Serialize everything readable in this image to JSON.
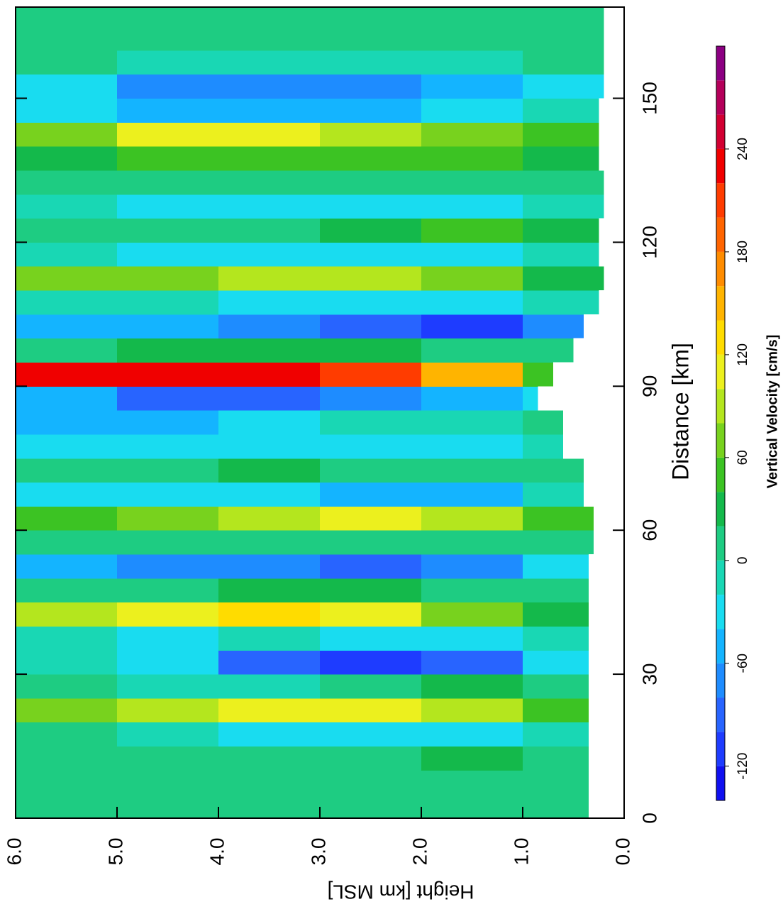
{
  "chart_data": {
    "type": "contour",
    "xlabel": "Distance [km]",
    "ylabel": "Height [km MSL]",
    "colorbar_label": "Vertical Velocity [cm/s]",
    "xlim": [
      0,
      169
    ],
    "ylim": [
      0,
      6
    ],
    "xticks": [
      0,
      30,
      60,
      90,
      120,
      150
    ],
    "yticks": [
      {
        "value": 0,
        "label": "0.0"
      },
      {
        "value": 1,
        "label": "1.0"
      },
      {
        "value": 2,
        "label": "2.0"
      },
      {
        "value": 3,
        "label": "3.0"
      },
      {
        "value": 4,
        "label": "4.0"
      },
      {
        "value": 5,
        "label": "5.0"
      },
      {
        "value": 6,
        "label": "6.0"
      }
    ],
    "x": [
      0,
      5,
      10,
      15,
      20,
      25,
      30,
      35,
      40,
      45,
      50,
      55,
      60,
      65,
      70,
      75,
      80,
      85,
      90,
      95,
      100,
      105,
      110,
      115,
      120,
      125,
      130,
      135,
      140,
      145,
      150,
      155,
      160,
      165
    ],
    "y": [
      0,
      1,
      2,
      3,
      4,
      5
    ],
    "z": [
      [
        10,
        10,
        10,
        10,
        10,
        10
      ],
      [
        10,
        10,
        10,
        10,
        10,
        10
      ],
      [
        10,
        20,
        10,
        10,
        10,
        10
      ],
      [
        -10,
        -30,
        -30,
        -30,
        -10,
        10
      ],
      [
        50,
        90,
        110,
        110,
        90,
        70
      ],
      [
        10,
        30,
        10,
        -10,
        -10,
        10
      ],
      [
        -30,
        -90,
        -110,
        -90,
        -40,
        -20
      ],
      [
        -10,
        -30,
        -30,
        -10,
        -30,
        -10
      ],
      [
        30,
        70,
        110,
        130,
        110,
        90
      ],
      [
        10,
        10,
        30,
        30,
        10,
        10
      ],
      [
        -30,
        -70,
        -90,
        -70,
        -70,
        -50
      ],
      [
        10,
        10,
        10,
        10,
        10,
        10
      ],
      [
        50,
        90,
        110,
        90,
        70,
        50
      ],
      [
        -10,
        -50,
        -50,
        -30,
        -30,
        -30
      ],
      [
        10,
        10,
        10,
        30,
        10,
        10
      ],
      [
        -10,
        -30,
        -30,
        -30,
        -30,
        -30
      ],
      [
        10,
        -10,
        -10,
        -30,
        -50,
        -50
      ],
      [
        -30,
        -50,
        -70,
        -90,
        -90,
        -50
      ],
      [
        50,
        150,
        210,
        230,
        230,
        230
      ],
      [
        10,
        10,
        30,
        30,
        30,
        10
      ],
      [
        -70,
        -110,
        -90,
        -70,
        -50,
        -50
      ],
      [
        -10,
        -30,
        -30,
        -30,
        -10,
        -10
      ],
      [
        30,
        70,
        90,
        90,
        70,
        70
      ],
      [
        -10,
        -30,
        -30,
        -30,
        -30,
        -10
      ],
      [
        30,
        50,
        30,
        10,
        10,
        10
      ],
      [
        -10,
        -30,
        -30,
        -30,
        -30,
        -10
      ],
      [
        10,
        10,
        10,
        10,
        10,
        10
      ],
      [
        30,
        50,
        50,
        50,
        50,
        30
      ],
      [
        50,
        70,
        90,
        100,
        100,
        70
      ],
      [
        -10,
        -30,
        -50,
        -50,
        -50,
        -30
      ],
      [
        -30,
        -50,
        -70,
        -70,
        -70,
        -30
      ],
      [
        10,
        -10,
        -10,
        -10,
        -10,
        10
      ],
      [
        10,
        10,
        10,
        10,
        10,
        10
      ],
      [
        10,
        10,
        10,
        10,
        10,
        10
      ]
    ],
    "terrain": [
      0.35,
      0.35,
      0.35,
      0.35,
      0.35,
      0.35,
      0.35,
      0.35,
      0.35,
      0.35,
      0.35,
      0.3,
      0.3,
      0.4,
      0.4,
      0.6,
      0.6,
      0.85,
      0.7,
      0.5,
      0.4,
      0.25,
      0.2,
      0.25,
      0.25,
      0.2,
      0.2,
      0.25,
      0.25,
      0.25,
      0.2,
      0.2,
      0.2,
      0.2
    ],
    "levels": [
      -140,
      -120,
      -100,
      -80,
      -60,
      -40,
      -20,
      0,
      20,
      40,
      60,
      80,
      100,
      120,
      140,
      160,
      180,
      200,
      220,
      240,
      260,
      280,
      300
    ],
    "colors": [
      "#1010f0",
      "#1e3cff",
      "#2864ff",
      "#1e8cff",
      "#14b4ff",
      "#19dcf0",
      "#19d7b4",
      "#1ecc82",
      "#14b94b",
      "#3cc323",
      "#78d21e",
      "#b4e61e",
      "#ecf01e",
      "#ffdc00",
      "#ffb400",
      "#ff8c00",
      "#ff6400",
      "#ff3c00",
      "#f00000",
      "#d20032",
      "#b4005a",
      "#8c0082"
    ],
    "colorbar_ticks": [
      -120,
      -60,
      0,
      60,
      120,
      180,
      240
    ]
  }
}
